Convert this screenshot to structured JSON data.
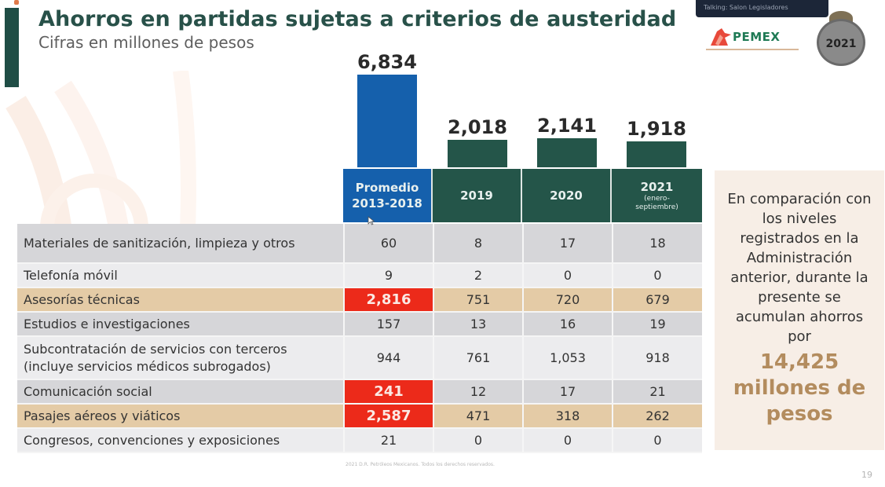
{
  "header": {
    "title": "Ahorros en partidas sujetas a criterios de austeridad",
    "subtitle": "Cifras en millones de pesos"
  },
  "overlay": {
    "label": "Talking: Salon Legisladores"
  },
  "logos": {
    "pemex_word": "PEMEX",
    "pemex_tagline": "POR EL RESCATE DE LA SOBERANÍA",
    "seal_year": "2021"
  },
  "colors": {
    "accent_green": "#1f4d45",
    "bar_blue": "#1560ac",
    "bar_green": "#245549",
    "highlight_red": "#ec2a1a",
    "row_gray": "#d6d6d9",
    "row_light": "#ececee",
    "row_tan": "#e4cba6",
    "callout_gold": "#b38c5e"
  },
  "chart_data": {
    "type": "bar",
    "title": "Ahorros en partidas sujetas a criterios de austeridad",
    "subtitle": "Cifras en millones de pesos",
    "categories": [
      "Promedio 2013-2018",
      "2019",
      "2020",
      "2021 (enero-septiembre)"
    ],
    "values": [
      6834,
      2018,
      2141,
      1918
    ],
    "value_labels": [
      "6,834",
      "2,018",
      "2,141",
      "1,918"
    ],
    "xlabel": "",
    "ylabel": "",
    "ylim": [
      0,
      6834
    ],
    "grid": false,
    "legend": "none"
  },
  "table": {
    "columns": [
      {
        "line1": "Promedio",
        "line2": "2013-2018",
        "sub": ""
      },
      {
        "line1": "2019",
        "line2": "",
        "sub": ""
      },
      {
        "line1": "2020",
        "line2": "",
        "sub": ""
      },
      {
        "line1": "2021",
        "line2": "",
        "sub": "(enero-septiembre)"
      }
    ],
    "rows": [
      {
        "label": "Materiales de sanitización, limpieza y otros",
        "values": [
          "60",
          "8",
          "17",
          "18"
        ],
        "style": "gray",
        "highlight_first": false
      },
      {
        "label": "Telefonía móvil",
        "values": [
          "9",
          "2",
          "0",
          "0"
        ],
        "style": "light",
        "highlight_first": false
      },
      {
        "label": "Asesorías técnicas",
        "values": [
          "2,816",
          "751",
          "720",
          "679"
        ],
        "style": "tan",
        "highlight_first": true
      },
      {
        "label": "Estudios e investigaciones",
        "values": [
          "157",
          "13",
          "16",
          "19"
        ],
        "style": "gray",
        "highlight_first": false
      },
      {
        "label": "Subcontratación de servicios con terceros (incluye servicios médicos subrogados)",
        "values": [
          "944",
          "761",
          "1,053",
          "918"
        ],
        "style": "light",
        "highlight_first": false
      },
      {
        "label": "Comunicación social",
        "values": [
          "241",
          "12",
          "17",
          "21"
        ],
        "style": "gray",
        "highlight_first": true
      },
      {
        "label": "Pasajes aéreos y viáticos",
        "values": [
          "2,587",
          "471",
          "318",
          "262"
        ],
        "style": "tan",
        "highlight_first": true
      },
      {
        "label": "Congresos, convenciones y exposiciones",
        "values": [
          "21",
          "0",
          "0",
          "0"
        ],
        "style": "light",
        "highlight_first": false
      }
    ]
  },
  "callout": {
    "text": "En comparación con los niveles registrados en la Administración anterior, durante la presente se acumulan ahorros por",
    "amount": "14,425",
    "unit": "millones de pesos"
  },
  "footer": {
    "copyright": "2021 D.R. Petróleos Mexicanos. Todos los derechos reservados.",
    "page_number": "19"
  }
}
